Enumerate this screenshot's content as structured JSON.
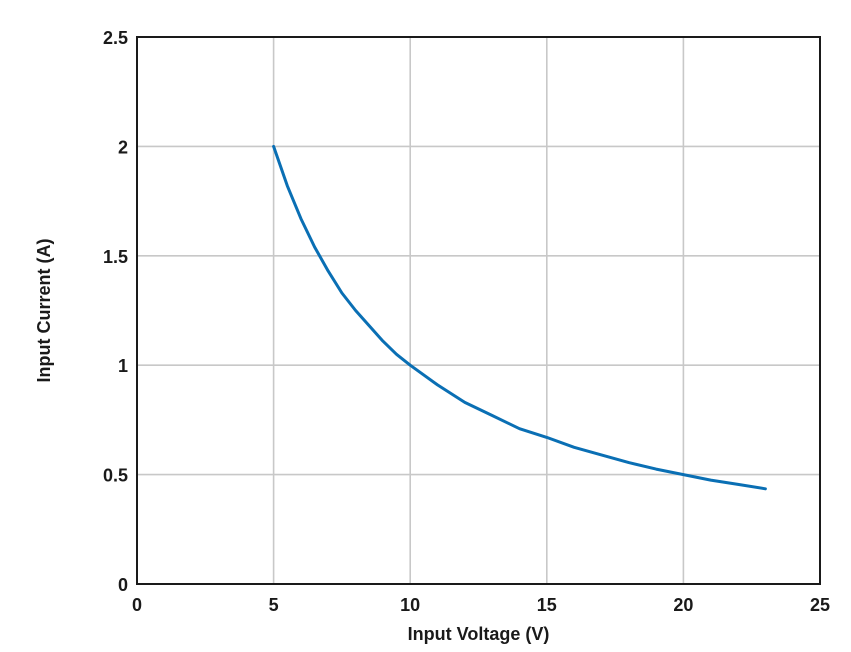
{
  "chart_data": {
    "type": "line",
    "title": "",
    "xlabel": "Input Voltage (V)",
    "ylabel": "Input Current (A)",
    "xlim": [
      0,
      25
    ],
    "ylim": [
      0,
      2.5
    ],
    "x_ticks": [
      0,
      5,
      10,
      15,
      20,
      25
    ],
    "y_ticks": [
      0,
      0.5,
      1,
      1.5,
      2,
      2.5
    ],
    "x_tick_labels": [
      "0",
      "5",
      "10",
      "15",
      "20",
      "25"
    ],
    "y_tick_labels": [
      "0",
      "0.5",
      "1",
      "1.5",
      "2",
      "2.5"
    ],
    "grid": true,
    "legend": "none",
    "series": [
      {
        "color": "#0a6fb4",
        "x": [
          5,
          5.5,
          6,
          6.5,
          7,
          7.5,
          8,
          8.5,
          9,
          9.5,
          10,
          11,
          12,
          13,
          14,
          15,
          16,
          17,
          18,
          19,
          20,
          21,
          22,
          23
        ],
        "y": [
          2.0,
          1.82,
          1.67,
          1.54,
          1.43,
          1.33,
          1.25,
          1.18,
          1.11,
          1.05,
          1.0,
          0.91,
          0.83,
          0.77,
          0.71,
          0.67,
          0.625,
          0.59,
          0.555,
          0.525,
          0.5,
          0.475,
          0.455,
          0.435
        ]
      }
    ]
  }
}
